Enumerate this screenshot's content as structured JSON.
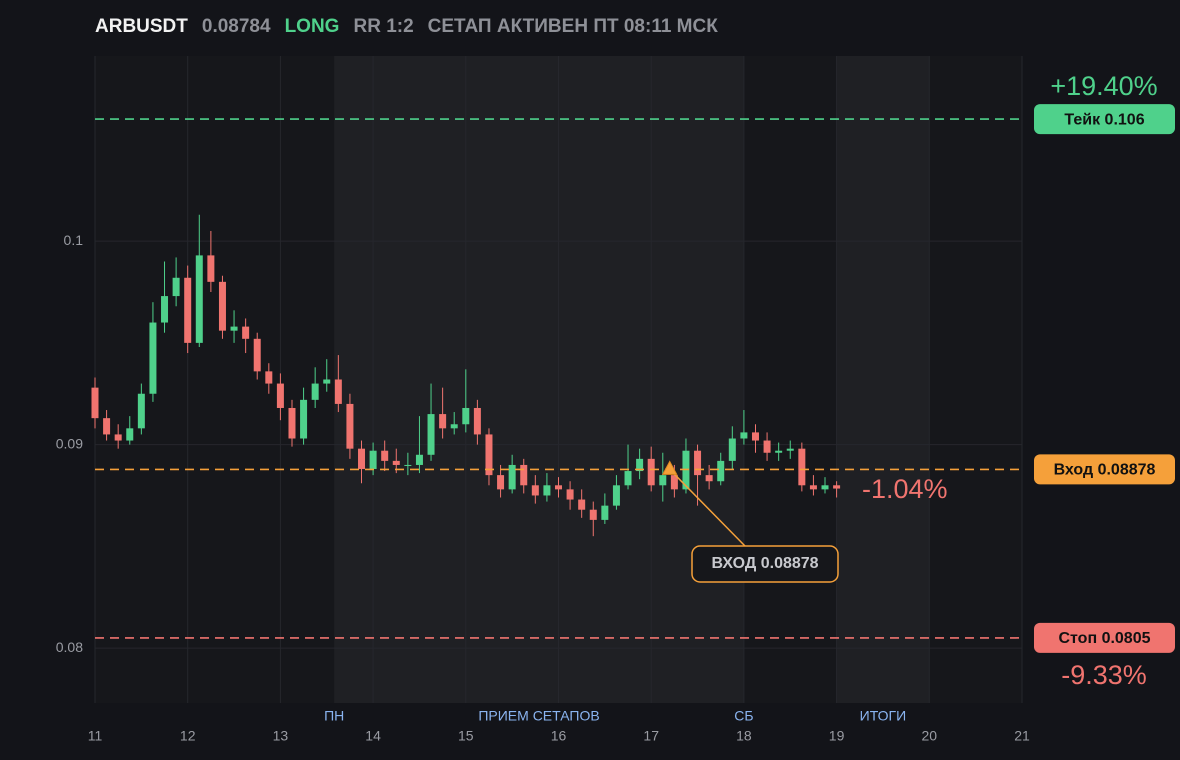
{
  "header": {
    "symbol": "ARBUSDT",
    "price": "0.08784",
    "side": "LONG",
    "rr": "RR 1:2",
    "status": "СЕТАП АКТИВЕН ПТ 08:11 МСК"
  },
  "chart_data": {
    "type": "candlestick",
    "x": [
      11,
      11.125,
      11.25,
      11.375,
      11.5,
      11.625,
      11.75,
      11.875,
      12,
      12.125,
      12.25,
      12.375,
      12.5,
      12.625,
      12.75,
      12.875,
      13,
      13.125,
      13.25,
      13.375,
      13.5,
      13.625,
      13.75,
      13.875,
      14,
      14.125,
      14.25,
      14.375,
      14.5,
      14.625,
      14.75,
      14.875,
      15,
      15.125,
      15.25,
      15.375,
      15.5,
      15.625,
      15.75,
      15.875,
      16,
      16.125,
      16.25,
      16.375,
      16.5,
      16.625,
      16.75,
      16.875,
      17,
      17.125,
      17.25,
      17.375,
      17.5,
      17.625,
      17.75,
      17.875,
      18,
      18.125,
      18.25,
      18.375,
      18.5,
      18.625,
      18.75,
      18.875,
      19
    ],
    "open": [
      0.0928,
      0.0913,
      0.0905,
      0.0902,
      0.0908,
      0.0925,
      0.096,
      0.0973,
      0.0982,
      0.095,
      0.0993,
      0.098,
      0.0956,
      0.0958,
      0.0952,
      0.0936,
      0.093,
      0.0918,
      0.0903,
      0.0922,
      0.093,
      0.0932,
      0.092,
      0.0898,
      0.0888,
      0.0897,
      0.0892,
      0.089,
      0.089,
      0.0895,
      0.0915,
      0.0908,
      0.091,
      0.0918,
      0.0905,
      0.0885,
      0.0878,
      0.089,
      0.088,
      0.0875,
      0.088,
      0.0878,
      0.0873,
      0.0868,
      0.0863,
      0.087,
      0.088,
      0.0887,
      0.0893,
      0.088,
      0.0885,
      0.0878,
      0.0897,
      0.0885,
      0.0882,
      0.0892,
      0.0903,
      0.0906,
      0.0902,
      0.0896,
      0.0897,
      0.0898,
      0.088,
      0.0878,
      0.088
    ],
    "high": [
      0.0933,
      0.0917,
      0.091,
      0.0914,
      0.093,
      0.097,
      0.099,
      0.0992,
      0.0988,
      0.1013,
      0.1005,
      0.0983,
      0.0966,
      0.0962,
      0.0955,
      0.094,
      0.0935,
      0.0922,
      0.0928,
      0.0938,
      0.0942,
      0.0944,
      0.0925,
      0.0902,
      0.0901,
      0.0902,
      0.0898,
      0.0896,
      0.0914,
      0.093,
      0.0928,
      0.0916,
      0.0937,
      0.0922,
      0.0908,
      0.089,
      0.0895,
      0.0893,
      0.0885,
      0.0886,
      0.0884,
      0.0882,
      0.0878,
      0.0872,
      0.0876,
      0.0885,
      0.09,
      0.0898,
      0.0899,
      0.0896,
      0.089,
      0.0903,
      0.09,
      0.089,
      0.0896,
      0.0909,
      0.0917,
      0.091,
      0.0906,
      0.0901,
      0.0902,
      0.0901,
      0.0885,
      0.0884,
      0.0882
    ],
    "low": [
      0.0908,
      0.0902,
      0.0898,
      0.09,
      0.0905,
      0.0921,
      0.0955,
      0.0968,
      0.0945,
      0.0948,
      0.0975,
      0.0952,
      0.095,
      0.0945,
      0.0932,
      0.0925,
      0.0912,
      0.0899,
      0.09,
      0.0918,
      0.0926,
      0.0916,
      0.0893,
      0.0881,
      0.0885,
      0.0887,
      0.0886,
      0.0885,
      0.0886,
      0.0892,
      0.0903,
      0.0905,
      0.0906,
      0.09,
      0.088,
      0.0874,
      0.0876,
      0.0876,
      0.0871,
      0.0872,
      0.0874,
      0.0868,
      0.0864,
      0.0855,
      0.0861,
      0.0868,
      0.0878,
      0.0883,
      0.0877,
      0.0872,
      0.0874,
      0.0876,
      0.087,
      0.0878,
      0.088,
      0.0888,
      0.09,
      0.0896,
      0.0892,
      0.0892,
      0.0893,
      0.0877,
      0.0875,
      0.0876,
      0.0874
    ],
    "close": [
      0.0913,
      0.0905,
      0.0902,
      0.0908,
      0.0925,
      0.096,
      0.0973,
      0.0982,
      0.095,
      0.0993,
      0.098,
      0.0956,
      0.0958,
      0.0952,
      0.0936,
      0.093,
      0.0918,
      0.0903,
      0.0922,
      0.093,
      0.0932,
      0.092,
      0.0898,
      0.0888,
      0.0897,
      0.0892,
      0.089,
      0.089,
      0.0895,
      0.0915,
      0.0908,
      0.091,
      0.0918,
      0.0905,
      0.0885,
      0.0878,
      0.089,
      0.088,
      0.0875,
      0.088,
      0.0878,
      0.0873,
      0.0868,
      0.0863,
      0.087,
      0.088,
      0.0887,
      0.0893,
      0.088,
      0.0885,
      0.0878,
      0.0897,
      0.0885,
      0.0882,
      0.0892,
      0.0903,
      0.0906,
      0.0902,
      0.0896,
      0.0897,
      0.0898,
      0.088,
      0.0878,
      0.088,
      0.08784
    ],
    "up_color": "#4fd18b",
    "down_color": "#f0746f",
    "xlim": [
      11,
      21
    ],
    "xticks": [
      11,
      12,
      13,
      14,
      15,
      16,
      17,
      18,
      19,
      20,
      21
    ],
    "ylim": [
      0.0773,
      0.1091
    ],
    "yticks": [
      0.08,
      0.09,
      0.1
    ],
    "grid": true,
    "sessions": [
      {
        "start": 13.58,
        "end": 18,
        "label": "ПРИЕМ СЕТАПОВ",
        "start_label": "ПН",
        "end_label": "СБ",
        "color": "#1f2024"
      },
      {
        "start": 19,
        "end": 20,
        "label": "ИТОГИ",
        "color": "#1f2024"
      }
    ],
    "levels": [
      {
        "value": 0.106,
        "label": "Тейк 0.106",
        "change": "+19.40%",
        "color": "#4fd18b"
      },
      {
        "value": 0.08878,
        "label": "Вход 0.08878",
        "change": "-1.04%",
        "color": "#f5a03a"
      },
      {
        "value": 0.0805,
        "label": "Стоп 0.0805",
        "change": "-9.33%",
        "color": "#f0746f"
      }
    ],
    "entry_marker": {
      "x": 17.2,
      "y": 0.08878,
      "label": "ВХОД 0.08878",
      "color": "#f5a03a"
    }
  }
}
